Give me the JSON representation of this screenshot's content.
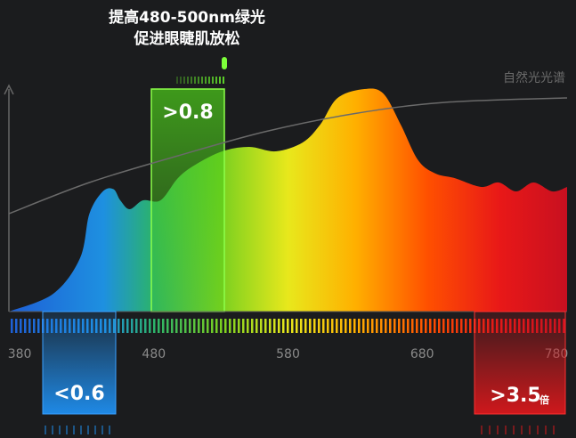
{
  "chart_data": {
    "type": "area",
    "title": "提高480-500nm绿光",
    "subtitle": "促进眼睫肌放松",
    "x": [
      372,
      405,
      425,
      432,
      442,
      450,
      455,
      462,
      472,
      485,
      498,
      511,
      531,
      551,
      571,
      591,
      604,
      617,
      637,
      651,
      664,
      677,
      690,
      704,
      724,
      737,
      750,
      763,
      777,
      788
    ],
    "values": [
      0,
      8,
      24,
      44,
      54,
      55,
      50,
      46,
      50,
      50,
      60,
      66,
      72,
      74,
      72,
      76,
      84,
      96,
      100,
      98,
      84,
      68,
      62,
      60,
      56,
      58,
      54,
      58,
      54,
      56
    ],
    "series": [
      {
        "name": "自然光光谱",
        "color": "#6a6a6a",
        "x": [
          372,
          432,
          498,
          564,
          630,
          697,
          788
        ],
        "values": [
          44,
          58,
          70,
          81,
          89,
          94,
          96
        ]
      }
    ],
    "xlim": [
      372,
      788
    ],
    "ylim": [
      0,
      100
    ],
    "xticks": [
      380,
      480,
      580,
      680,
      780
    ],
    "annotations": [
      {
        "text": ">0.8",
        "color": "#6fe02a"
      },
      {
        "text": "<0.6",
        "color": "#1f8ff0"
      },
      {
        "text": ">3.5",
        "unit": "倍",
        "color": "#d8181c"
      }
    ]
  }
}
